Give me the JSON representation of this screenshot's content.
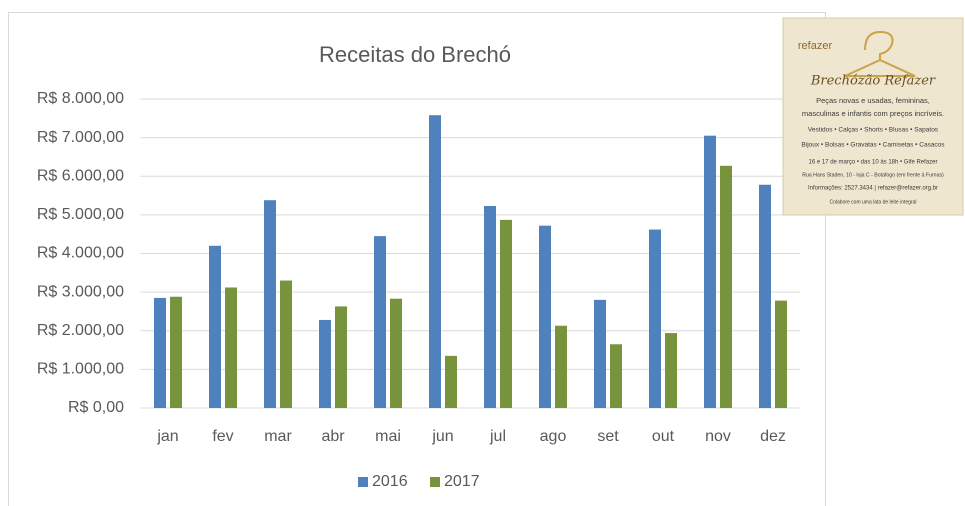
{
  "chart_data": {
    "type": "bar",
    "title": "Receitas do Brechó",
    "categories": [
      "jan",
      "fev",
      "mar",
      "abr",
      "mai",
      "jun",
      "jul",
      "ago",
      "set",
      "out",
      "nov",
      "dez"
    ],
    "series": [
      {
        "name": "2016",
        "color": "#4f81bd",
        "values": [
          2850,
          4200,
          5380,
          2280,
          4450,
          7580,
          5230,
          4720,
          2800,
          4620,
          7050,
          5780
        ]
      },
      {
        "name": "2017",
        "color": "#77933c",
        "values": [
          2880,
          3120,
          3300,
          2630,
          2830,
          1350,
          4870,
          2130,
          1650,
          1940,
          6270,
          2780
        ]
      }
    ],
    "ylim": [
      0,
      8000
    ],
    "yticks": [
      {
        "value": 0,
        "label": "R$ 0,00"
      },
      {
        "value": 1000,
        "label": "R$ 1.000,00"
      },
      {
        "value": 2000,
        "label": "R$ 2.000,00"
      },
      {
        "value": 3000,
        "label": "R$ 3.000,00"
      },
      {
        "value": 4000,
        "label": "R$ 4.000,00"
      },
      {
        "value": 5000,
        "label": "R$ 5.000,00"
      },
      {
        "value": 6000,
        "label": "R$ 6.000,00"
      },
      {
        "value": 7000,
        "label": "R$ 7.000,00"
      },
      {
        "value": 8000,
        "label": "R$ 8.000,00"
      }
    ],
    "grid": true,
    "legend": "bottom"
  },
  "flyer": {
    "logo": "refazer",
    "title": "Brechózão Refazer",
    "lines": [
      "Peças novas e usadas, femininas,",
      "masculinas e infantis com preços incríveis.",
      "Vestidos • Calças • Shorts • Blusas • Sapatos",
      "Bijoux • Bolsas • Gravatas • Camisetas • Casacos",
      "16 e 17 de março • das 10 às 18h • Gife Refazer",
      "Rua Hans Staden, 10 - loja C - Botafogo (em frente à Furnas)",
      "Informações: 2527.3434 | refazer@refazer.org.br",
      "Colabore com uma lata de leite integral"
    ]
  }
}
